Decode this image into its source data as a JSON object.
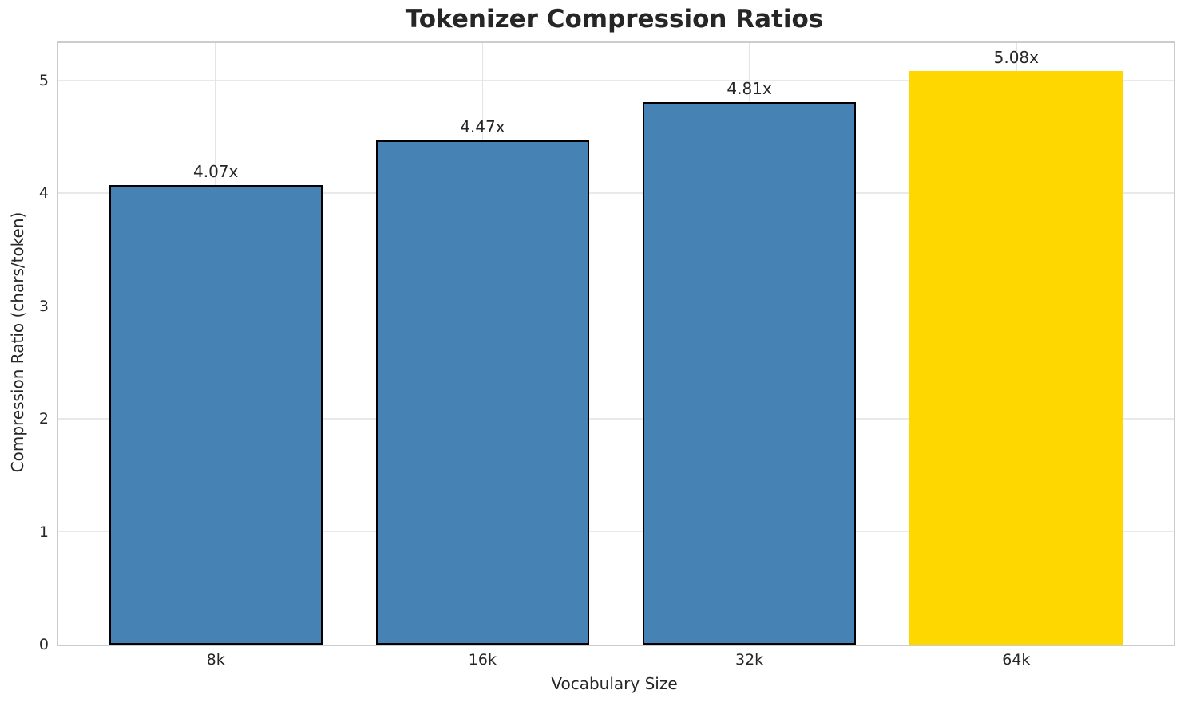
{
  "chart_data": {
    "type": "bar",
    "title": "Tokenizer Compression Ratios",
    "xlabel": "Vocabulary Size",
    "ylabel": "Compression Ratio (chars/token)",
    "categories": [
      "8k",
      "16k",
      "32k",
      "64k"
    ],
    "values": [
      4.07,
      4.47,
      4.81,
      5.08
    ],
    "value_labels": [
      "4.07x",
      "4.47x",
      "4.81x",
      "5.08x"
    ],
    "bar_colors": [
      "#4682B4",
      "#4682B4",
      "#4682B4",
      "#FFD700"
    ],
    "bar_edge_colors": [
      "#000000",
      "#000000",
      "#000000",
      "#FFD700"
    ],
    "highlighted_category": "64k",
    "yticks": [
      0,
      1,
      2,
      3,
      4,
      5
    ],
    "ylim": [
      0,
      5.33
    ],
    "xlim": [
      -0.59,
      3.59
    ],
    "bar_width": 0.8,
    "grid": true,
    "legend_position": "none",
    "colors": {
      "grid": "#e9e9e9",
      "spine": "#cccccc",
      "text": "#262626",
      "background": "#ffffff"
    }
  }
}
